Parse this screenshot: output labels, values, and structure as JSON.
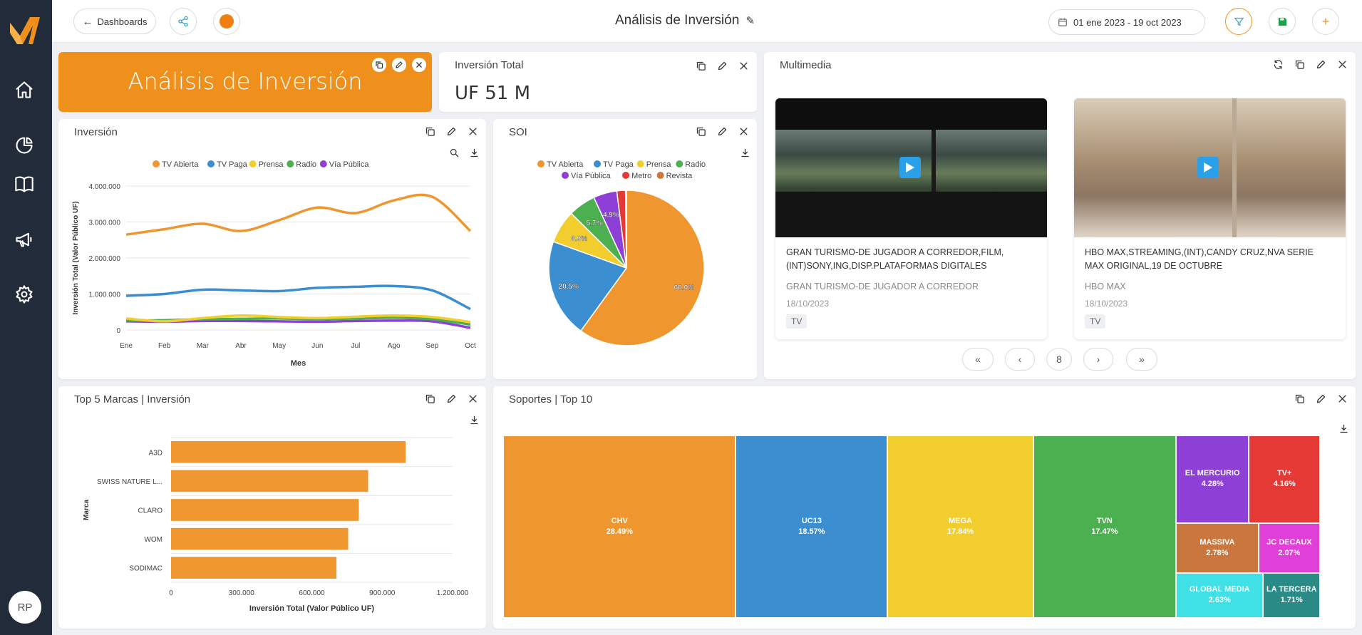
{
  "sidebar": {
    "avatar_initials": "RP"
  },
  "topbar": {
    "back_label": "Dashboards",
    "title": "Análisis de Inversión",
    "date_range": "01 ene 2023 - 19 oct 2023"
  },
  "colors": {
    "brand": "#f0901c",
    "sidebar": "#222b3a",
    "tv_abierta": "#f0962f",
    "tv_paga": "#3b8ed0",
    "prensa": "#f2cd2e",
    "radio": "#4caf50",
    "via_publica": "#8e3fd6",
    "metro": "#e53935",
    "revista": "#c9773e"
  },
  "banner": {
    "title": "Análisis de Inversión"
  },
  "kpi": {
    "title": "Inversión Total",
    "value": "UF 51 M"
  },
  "inversion": {
    "title": "Inversión"
  },
  "soi": {
    "title": "SOI"
  },
  "multimedia": {
    "title": "Multimedia",
    "cards": [
      {
        "title": "GRAN TURISMO-DE JUGADOR A CORREDOR,FILM,(INT)SONY,ING,DISP.PLATAFORMAS DIGITALES",
        "subtitle": "GRAN TURISMO-DE JUGADOR A CORREDOR",
        "date": "18/10/2023",
        "tag": "TV"
      },
      {
        "title": "HBO MAX,STREAMING,(INT),CANDY CRUZ,NVA SERIE MAX ORIGINAL,19 DE OCTUBRE",
        "subtitle": "HBO MAX",
        "date": "18/10/2023",
        "tag": "TV"
      }
    ],
    "page": "8"
  },
  "top5": {
    "title": "Top 5 Marcas | Inversión"
  },
  "soportes": {
    "title": "Soportes | Top 10"
  },
  "chart_data": [
    {
      "type": "line",
      "title": "",
      "xlabel": "Mes",
      "ylabel": "Inversión Total (Valor Público UF)",
      "categories": [
        "Ene",
        "Feb",
        "Mar",
        "Abr",
        "May",
        "Jun",
        "Jul",
        "Ago",
        "Sep",
        "Oct"
      ],
      "yticks": [
        "0",
        "1.000.000",
        "2.000.000",
        "3.000.000",
        "4.000.000"
      ],
      "ylim": [
        0,
        4000000
      ],
      "legend": "top",
      "grid": true,
      "series": [
        {
          "name": "TV Abierta",
          "color": "#f0962f",
          "values": [
            2650000,
            2800000,
            2950000,
            2750000,
            3050000,
            3400000,
            3250000,
            3600000,
            3700000,
            2750000
          ]
        },
        {
          "name": "TV Paga",
          "color": "#3b8ed0",
          "values": [
            950000,
            1000000,
            1120000,
            1100000,
            1080000,
            1170000,
            1200000,
            1220000,
            1100000,
            580000
          ]
        },
        {
          "name": "Prensa",
          "color": "#f2cd2e",
          "values": [
            320000,
            240000,
            330000,
            400000,
            360000,
            330000,
            370000,
            400000,
            360000,
            220000
          ]
        },
        {
          "name": "Radio",
          "color": "#4caf50",
          "values": [
            260000,
            270000,
            300000,
            310000,
            320000,
            300000,
            320000,
            340000,
            300000,
            150000
          ]
        },
        {
          "name": "Vía Pública",
          "color": "#8e3fd6",
          "values": [
            240000,
            230000,
            250000,
            250000,
            240000,
            230000,
            250000,
            260000,
            240000,
            60000
          ]
        }
      ]
    },
    {
      "type": "pie",
      "legend": "top",
      "labels": [
        "TV Abierta",
        "TV Paga",
        "Prensa",
        "Radio",
        "Vía Pública",
        "Metro",
        "Revista"
      ],
      "colors": [
        "#f0962f",
        "#3b8ed0",
        "#f2cd2e",
        "#4caf50",
        "#8e3fd6",
        "#e53935",
        "#c9773e"
      ],
      "values": [
        60.0,
        20.5,
        6.9,
        5.7,
        4.9,
        1.8,
        0.2
      ],
      "value_labels": [
        "60.0%",
        "20.5%",
        "6.9%",
        "5.7%",
        "4.9%",
        "",
        ""
      ]
    },
    {
      "type": "bar",
      "orientation": "horizontal",
      "xlabel": "Inversión Total (Valor Público UF)",
      "ylabel": "Marca",
      "categories": [
        "A3D",
        "SWISS NATURE L...",
        "CLARO",
        "WOM",
        "SODIMAC"
      ],
      "values": [
        1000000,
        840000,
        800000,
        755000,
        705000
      ],
      "xticks": [
        "0",
        "300.000",
        "600.000",
        "900.000",
        "1.200.000"
      ],
      "xlim": [
        0,
        1200000
      ],
      "color": "#f0962f"
    },
    {
      "type": "treemap",
      "items": [
        {
          "name": "CHV",
          "pct": "28.49%",
          "value": 28.49,
          "color": "#f0962f"
        },
        {
          "name": "UC13",
          "pct": "18.57%",
          "value": 18.57,
          "color": "#3b8ed0"
        },
        {
          "name": "MEGA",
          "pct": "17.84%",
          "value": 17.84,
          "color": "#f2cd2e"
        },
        {
          "name": "TVN",
          "pct": "17.47%",
          "value": 17.47,
          "color": "#4caf50"
        },
        {
          "name": "EL MERCURIO",
          "pct": "4.28%",
          "value": 4.28,
          "color": "#8e3fd6"
        },
        {
          "name": "TV+",
          "pct": "4.16%",
          "value": 4.16,
          "color": "#e53935"
        },
        {
          "name": "MASSIVA",
          "pct": "2.78%",
          "value": 2.78,
          "color": "#c9773e"
        },
        {
          "name": "JC DECAUX",
          "pct": "2.07%",
          "value": 2.07,
          "color": "#e040d8"
        },
        {
          "name": "GLOBAL MEDIA",
          "pct": "2.63%",
          "value": 2.63,
          "color": "#3fe0e6"
        },
        {
          "name": "LA TERCERA",
          "pct": "1.71%",
          "value": 1.71,
          "color": "#2a8a85"
        }
      ]
    }
  ]
}
